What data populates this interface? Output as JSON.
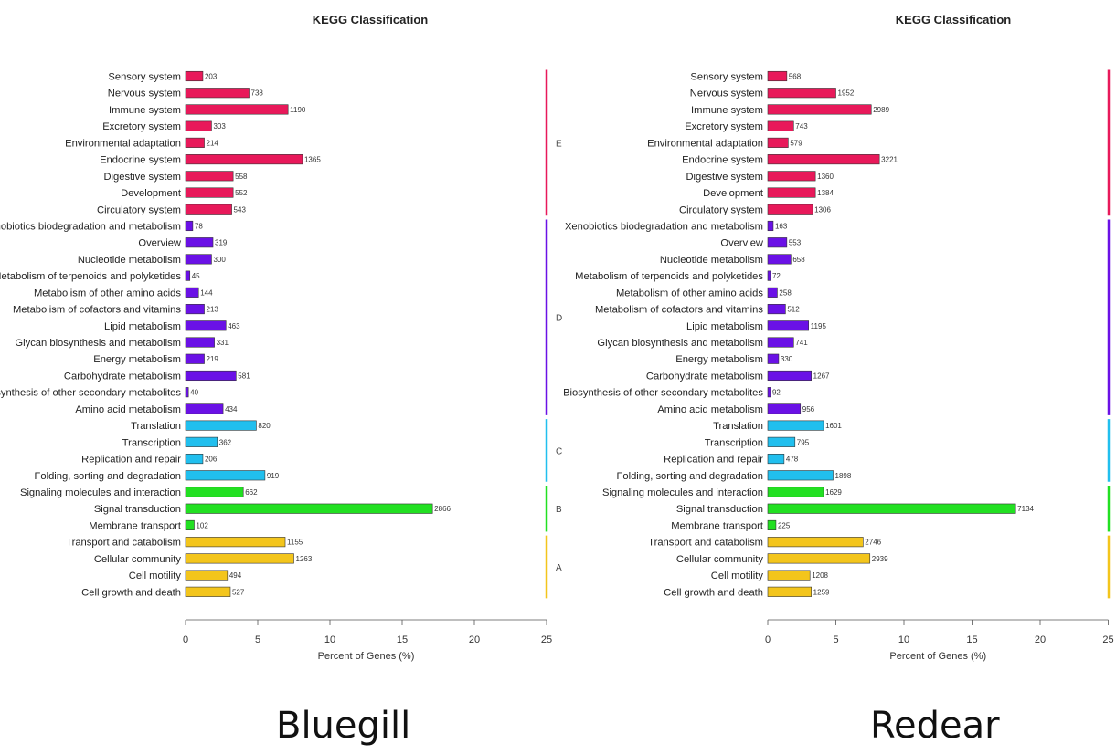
{
  "bottom_labels": [
    "Bluegill",
    "Redear"
  ],
  "group_colors": {
    "E": "#e8195a",
    "D": "#6a11e6",
    "C": "#21bfee",
    "B": "#22e022",
    "A": "#f3c51c"
  },
  "group_letters": [
    "E",
    "D",
    "C",
    "B",
    "A"
  ],
  "chart_data": [
    {
      "type": "bar",
      "orientation": "horizontal",
      "title": "KEGG Classification",
      "xlabel": "Percent of Genes (%)",
      "xlim": [
        0,
        25
      ],
      "xticks": [
        0,
        5,
        10,
        15,
        20,
        25
      ],
      "bottom_label": "Bluegill",
      "categories": [
        "Sensory system",
        "Nervous system",
        "Immune system",
        "Excretory system",
        "Environmental adaptation",
        "Endocrine system",
        "Digestive system",
        "Development",
        "Circulatory system",
        "Xenobiotics biodegradation and metabolism",
        "Overview",
        "Nucleotide metabolism",
        "Metabolism of terpenoids and polyketides",
        "Metabolism of other amino acids",
        "Metabolism of cofactors and vitamins",
        "Lipid metabolism",
        "Glycan biosynthesis and metabolism",
        "Energy metabolism",
        "Carbohydrate metabolism",
        "Biosynthesis of other secondary metabolites",
        "Amino acid metabolism",
        "Translation",
        "Transcription",
        "Replication and repair",
        "Folding, sorting and degradation",
        "Signaling molecules and interaction",
        "Signal transduction",
        "Membrane transport",
        "Transport and catabolism",
        "Cellular community",
        "Cell motility",
        "Cell growth and death"
      ],
      "groups": [
        "E",
        "E",
        "E",
        "E",
        "E",
        "E",
        "E",
        "E",
        "E",
        "D",
        "D",
        "D",
        "D",
        "D",
        "D",
        "D",
        "D",
        "D",
        "D",
        "D",
        "D",
        "C",
        "C",
        "C",
        "C",
        "B",
        "B",
        "B",
        "A",
        "A",
        "A",
        "A"
      ],
      "values": [
        1.2,
        4.4,
        7.1,
        1.8,
        1.3,
        8.1,
        3.3,
        3.3,
        3.2,
        0.5,
        1.9,
        1.8,
        0.3,
        0.9,
        1.3,
        2.8,
        2.0,
        1.3,
        3.5,
        0.2,
        2.6,
        4.9,
        2.2,
        1.2,
        5.5,
        4.0,
        17.1,
        0.6,
        6.9,
        7.5,
        2.9,
        3.1
      ],
      "counts": [
        "203",
        "738",
        "1190",
        "303",
        "214",
        "1365",
        "558",
        "552",
        "543",
        "78",
        "319",
        "300",
        "45",
        "144",
        "213",
        "463",
        "331",
        "219",
        "581",
        "40",
        "434",
        "820",
        "362",
        "206",
        "919",
        "662",
        "2866",
        "102",
        "1155",
        "1263",
        "494",
        "527"
      ]
    },
    {
      "type": "bar",
      "orientation": "horizontal",
      "title": "KEGG Classification",
      "xlabel": "Percent of Genes (%)",
      "xlim": [
        0,
        25
      ],
      "xticks": [
        0,
        5,
        10,
        15,
        20,
        25
      ],
      "bottom_label": "Redear",
      "categories": [
        "Sensory system",
        "Nervous system",
        "Immune system",
        "Excretory system",
        "Environmental adaptation",
        "Endocrine system",
        "Digestive system",
        "Development",
        "Circulatory system",
        "Xenobiotics biodegradation and metabolism",
        "Overview",
        "Nucleotide metabolism",
        "Metabolism of terpenoids and polyketides",
        "Metabolism of other amino acids",
        "Metabolism of cofactors and vitamins",
        "Lipid metabolism",
        "Glycan biosynthesis and metabolism",
        "Energy metabolism",
        "Carbohydrate metabolism",
        "Biosynthesis of other secondary metabolites",
        "Amino acid metabolism",
        "Translation",
        "Transcription",
        "Replication and repair",
        "Folding, sorting and degradation",
        "Signaling molecules and interaction",
        "Signal transduction",
        "Membrane transport",
        "Transport and catabolism",
        "Cellular community",
        "Cell motility",
        "Cell growth and death"
      ],
      "groups": [
        "E",
        "E",
        "E",
        "E",
        "E",
        "E",
        "E",
        "E",
        "E",
        "D",
        "D",
        "D",
        "D",
        "D",
        "D",
        "D",
        "D",
        "D",
        "D",
        "D",
        "D",
        "C",
        "C",
        "C",
        "C",
        "B",
        "B",
        "B",
        "A",
        "A",
        "A",
        "A"
      ],
      "values": [
        1.4,
        5.0,
        7.6,
        1.9,
        1.5,
        8.2,
        3.5,
        3.5,
        3.3,
        0.4,
        1.4,
        1.7,
        0.2,
        0.7,
        1.3,
        3.0,
        1.9,
        0.8,
        3.2,
        0.2,
        2.4,
        4.1,
        2.0,
        1.2,
        4.8,
        4.1,
        18.2,
        0.6,
        7.0,
        7.5,
        3.1,
        3.2
      ],
      "counts": [
        "568",
        "1952",
        "2989",
        "743",
        "579",
        "3221",
        "1360",
        "1384",
        "1306",
        "163",
        "553",
        "658",
        "72",
        "258",
        "512",
        "1195",
        "741",
        "330",
        "1267",
        "92",
        "956",
        "1601",
        "795",
        "478",
        "1898",
        "1629",
        "7134",
        "225",
        "2746",
        "2939",
        "1208",
        "1259"
      ]
    }
  ]
}
